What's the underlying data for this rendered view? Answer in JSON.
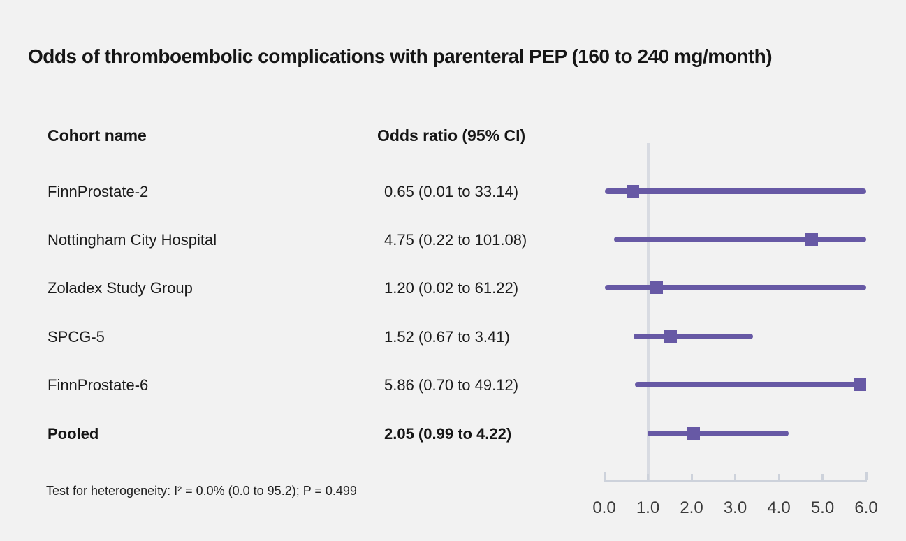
{
  "title": "Odds of thromboembolic complications with parenteral PEP (160 to 240 mg/month)",
  "table": {
    "cohort_header": "Cohort name",
    "or_header": "Odds ratio (95% CI)"
  },
  "footnote": "Test for heterogeneity: I² = 0.0% (0.0 to 95.2); P = 0.499",
  "chart_data": {
    "type": "forest",
    "title": "Odds of thromboembolic complications with parenteral PEP (160 to 240 mg/month)",
    "xlabel": "",
    "xlim": [
      0,
      6
    ],
    "reference_line": 1.0,
    "ticks": [
      0,
      1,
      2,
      3,
      4,
      5,
      6
    ],
    "tick_labels": [
      "0.0",
      "1.0",
      "2.0",
      "3.0",
      "4.0",
      "5.0",
      "6.0"
    ],
    "grid": false,
    "rows": [
      {
        "name": "FinnProstate-2",
        "or": 0.65,
        "ci_low": 0.01,
        "ci_high": 33.14,
        "or_label": "0.65 (0.01 to 33.14)",
        "bold": false
      },
      {
        "name": "Nottingham City Hospital",
        "or": 4.75,
        "ci_low": 0.22,
        "ci_high": 101.08,
        "or_label": "4.75 (0.22 to 101.08)",
        "bold": false
      },
      {
        "name": "Zoladex Study Group",
        "or": 1.2,
        "ci_low": 0.02,
        "ci_high": 61.22,
        "or_label": "1.20 (0.02 to 61.22)",
        "bold": false
      },
      {
        "name": "SPCG-5",
        "or": 1.52,
        "ci_low": 0.67,
        "ci_high": 3.41,
        "or_label": "1.52 (0.67 to 3.41)",
        "bold": false
      },
      {
        "name": "FinnProstate-6",
        "or": 5.86,
        "ci_low": 0.7,
        "ci_high": 49.12,
        "or_label": "5.86 (0.70 to 49.12)",
        "bold": false
      },
      {
        "name": "Pooled",
        "or": 2.05,
        "ci_low": 0.99,
        "ci_high": 4.22,
        "or_label": "2.05 (0.99 to 4.22)",
        "bold": true
      }
    ],
    "colors": {
      "background": "#f2f2f2",
      "ci_line": "#6759a5",
      "marker": "#6759a5",
      "reference_line": "#d8dbe2",
      "axis": "#cdd2db",
      "text": "#1b1b1b"
    }
  }
}
